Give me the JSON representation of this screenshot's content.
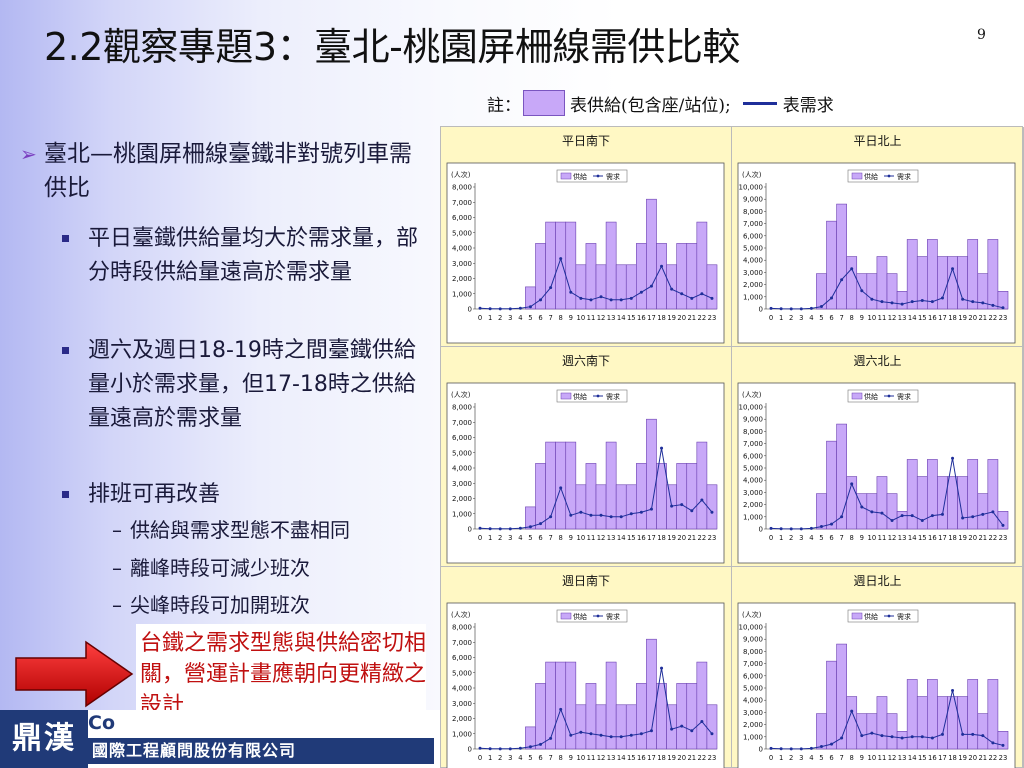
{
  "title": "2.2觀察專題3：臺北-桃園屏柵線需供比較",
  "page_number": "9",
  "note": {
    "prefix": "註：",
    "supply_label": "表供給(包含座/站位);",
    "demand_label": "表需求"
  },
  "bullet_main": "臺北—桃園屏柵線臺鐵非對號列車需供比",
  "bullets": [
    {
      "text": "平日臺鐵供給量均大於需求量，部分時段供給量遠高於需求量"
    },
    {
      "text": "週六及週日18-19時之間臺鐵供給量小於需求量，但17-18時之供給量遠高於需求量"
    },
    {
      "text": "排班可再改善"
    }
  ],
  "sub_bullets": [
    "供給與需求型態不盡相同",
    "離峰時段可減少班次",
    "尖峰時段可加開班次"
  ],
  "callout": "台鐵之需求型態與供給密切相關，營運計畫應朝向更精緻之設計",
  "logo": {
    "brand": "鼎漢",
    "brand_suffix": "Co",
    "company": "國際工程顧問股份有限公司"
  },
  "colors": {
    "supply": "#c8a8f8",
    "supply_border": "#6a3fb0",
    "demand": "#1f2f9a",
    "panel_bg": "#fff8c4",
    "callout": "#c01010"
  },
  "chart_data": [
    {
      "type": "bar",
      "title": "平日南下",
      "unit_label": "(人次)",
      "legend": [
        "供給",
        "需求"
      ],
      "ylim": [
        0,
        8000
      ],
      "yticks": [
        "0",
        "1,000",
        "2,000",
        "3,000",
        "4,000",
        "5,000",
        "6,000",
        "7,000",
        "8,000"
      ],
      "categories": [
        "0",
        "1",
        "2",
        "3",
        "4",
        "5",
        "6",
        "7",
        "8",
        "9",
        "10",
        "11",
        "12",
        "13",
        "14",
        "15",
        "16",
        "17",
        "18",
        "19",
        "20",
        "21",
        "22",
        "23"
      ],
      "series": [
        {
          "name": "供給",
          "type": "bar",
          "values": [
            0,
            0,
            0,
            0,
            0,
            1450,
            4300,
            5700,
            5700,
            5700,
            2900,
            4300,
            2900,
            5700,
            2900,
            2900,
            4300,
            7200,
            4300,
            2900,
            4300,
            4300,
            5700,
            2900
          ]
        },
        {
          "name": "需求",
          "type": "line",
          "values": [
            50,
            20,
            10,
            10,
            50,
            150,
            600,
            1400,
            3300,
            1100,
            700,
            600,
            800,
            600,
            600,
            700,
            1100,
            1500,
            2800,
            1300,
            1000,
            700,
            1000,
            700
          ]
        }
      ]
    },
    {
      "type": "bar",
      "title": "平日北上",
      "unit_label": "(人次)",
      "legend": [
        "供給",
        "需求"
      ],
      "ylim": [
        0,
        10000
      ],
      "yticks": [
        "0",
        "1,000",
        "2,000",
        "3,000",
        "4,000",
        "5,000",
        "6,000",
        "7,000",
        "8,000",
        "9,000",
        "10,000"
      ],
      "categories": [
        "0",
        "1",
        "2",
        "3",
        "4",
        "5",
        "6",
        "7",
        "8",
        "9",
        "10",
        "11",
        "12",
        "13",
        "14",
        "15",
        "16",
        "17",
        "18",
        "19",
        "20",
        "21",
        "22",
        "23"
      ],
      "series": [
        {
          "name": "供給",
          "type": "bar",
          "values": [
            0,
            0,
            0,
            0,
            0,
            2900,
            7200,
            8600,
            4300,
            2900,
            2900,
            4300,
            2900,
            1450,
            5700,
            4300,
            5700,
            4300,
            4300,
            4300,
            5700,
            2900,
            5700,
            1450
          ]
        },
        {
          "name": "需求",
          "type": "line",
          "values": [
            50,
            20,
            10,
            10,
            50,
            200,
            900,
            2400,
            3300,
            1500,
            800,
            600,
            500,
            400,
            600,
            700,
            600,
            900,
            3300,
            800,
            600,
            500,
            300,
            100
          ]
        }
      ]
    },
    {
      "type": "bar",
      "title": "週六南下",
      "unit_label": "(人次)",
      "legend": [
        "供給",
        "需求"
      ],
      "ylim": [
        0,
        8000
      ],
      "yticks": [
        "0",
        "1,000",
        "2,000",
        "3,000",
        "4,000",
        "5,000",
        "6,000",
        "7,000",
        "8,000"
      ],
      "categories": [
        "0",
        "1",
        "2",
        "3",
        "4",
        "5",
        "6",
        "7",
        "8",
        "9",
        "10",
        "11",
        "12",
        "13",
        "14",
        "15",
        "16",
        "17",
        "18",
        "19",
        "20",
        "21",
        "22",
        "23"
      ],
      "series": [
        {
          "name": "供給",
          "type": "bar",
          "values": [
            0,
            0,
            0,
            0,
            0,
            1450,
            4300,
            5700,
            5700,
            5700,
            2900,
            4300,
            2900,
            5700,
            2900,
            2900,
            4300,
            7200,
            4300,
            2900,
            4300,
            4300,
            5700,
            2900
          ]
        },
        {
          "name": "需求",
          "type": "line",
          "values": [
            50,
            20,
            10,
            10,
            50,
            150,
            350,
            800,
            2700,
            900,
            1100,
            900,
            900,
            800,
            800,
            1000,
            1100,
            1300,
            5300,
            1500,
            1600,
            1200,
            1900,
            1100
          ]
        }
      ]
    },
    {
      "type": "bar",
      "title": "週六北上",
      "unit_label": "(人次)",
      "legend": [
        "供給",
        "需求"
      ],
      "ylim": [
        0,
        10000
      ],
      "yticks": [
        "0",
        "1,000",
        "2,000",
        "3,000",
        "4,000",
        "5,000",
        "6,000",
        "7,000",
        "8,000",
        "9,000",
        "10,000"
      ],
      "categories": [
        "0",
        "1",
        "2",
        "3",
        "4",
        "5",
        "6",
        "7",
        "8",
        "9",
        "10",
        "11",
        "12",
        "13",
        "14",
        "15",
        "16",
        "17",
        "18",
        "19",
        "20",
        "21",
        "22",
        "23"
      ],
      "series": [
        {
          "name": "供給",
          "type": "bar",
          "values": [
            0,
            0,
            0,
            0,
            0,
            2900,
            7200,
            8600,
            4300,
            2900,
            2900,
            4300,
            2900,
            1450,
            5700,
            4300,
            5700,
            4300,
            4300,
            4300,
            5700,
            2900,
            5700,
            1450
          ]
        },
        {
          "name": "需求",
          "type": "line",
          "values": [
            50,
            20,
            10,
            10,
            50,
            200,
            400,
            1000,
            3700,
            1800,
            1400,
            1300,
            700,
            1100,
            1100,
            700,
            1100,
            1200,
            5800,
            900,
            1000,
            1200,
            1400,
            300
          ]
        }
      ]
    },
    {
      "type": "bar",
      "title": "週日南下",
      "unit_label": "(人次)",
      "legend": [
        "供給",
        "需求"
      ],
      "ylim": [
        0,
        8000
      ],
      "yticks": [
        "0",
        "1,000",
        "2,000",
        "3,000",
        "4,000",
        "5,000",
        "6,000",
        "7,000",
        "8,000"
      ],
      "categories": [
        "0",
        "1",
        "2",
        "3",
        "4",
        "5",
        "6",
        "7",
        "8",
        "9",
        "10",
        "11",
        "12",
        "13",
        "14",
        "15",
        "16",
        "17",
        "18",
        "19",
        "20",
        "21",
        "22",
        "23"
      ],
      "series": [
        {
          "name": "供給",
          "type": "bar",
          "values": [
            0,
            0,
            0,
            0,
            0,
            1450,
            4300,
            5700,
            5700,
            5700,
            2900,
            4300,
            2900,
            5700,
            2900,
            2900,
            4300,
            7200,
            4300,
            2900,
            4300,
            4300,
            5700,
            2900
          ]
        },
        {
          "name": "需求",
          "type": "line",
          "values": [
            50,
            20,
            10,
            10,
            50,
            150,
            300,
            700,
            2600,
            900,
            1100,
            1000,
            900,
            800,
            800,
            900,
            1000,
            1200,
            5300,
            1300,
            1500,
            1200,
            1800,
            1000
          ]
        }
      ]
    },
    {
      "type": "bar",
      "title": "週日北上",
      "unit_label": "(人次)",
      "legend": [
        "供給",
        "需求"
      ],
      "ylim": [
        0,
        10000
      ],
      "yticks": [
        "0",
        "1,000",
        "2,000",
        "3,000",
        "4,000",
        "5,000",
        "6,000",
        "7,000",
        "8,000",
        "9,000",
        "10,000"
      ],
      "categories": [
        "0",
        "1",
        "2",
        "3",
        "4",
        "5",
        "6",
        "7",
        "8",
        "9",
        "10",
        "11",
        "12",
        "13",
        "14",
        "15",
        "16",
        "17",
        "18",
        "19",
        "20",
        "21",
        "22",
        "23"
      ],
      "series": [
        {
          "name": "供給",
          "type": "bar",
          "values": [
            0,
            0,
            0,
            0,
            0,
            2900,
            7200,
            8600,
            4300,
            2900,
            2900,
            4300,
            2900,
            1450,
            5700,
            4300,
            5700,
            4300,
            4300,
            4300,
            5700,
            2900,
            5700,
            1450
          ]
        },
        {
          "name": "需求",
          "type": "line",
          "values": [
            50,
            20,
            10,
            10,
            50,
            200,
            400,
            900,
            3100,
            1100,
            1300,
            1100,
            1000,
            900,
            1000,
            1000,
            900,
            1200,
            4800,
            1200,
            1200,
            1100,
            500,
            300
          ]
        }
      ]
    }
  ]
}
